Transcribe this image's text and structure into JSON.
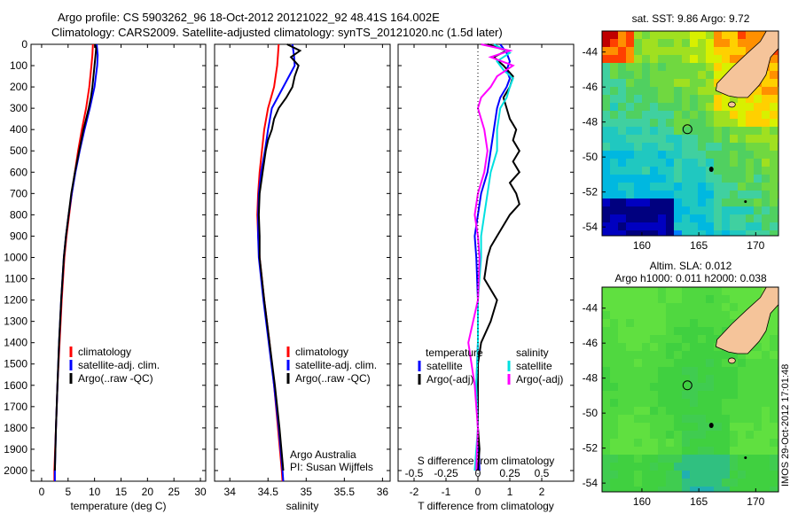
{
  "header": {
    "line1": "Argo profile: CS 5903262_96 18-Oct-2012 20121022_92 48.41S 164.002E",
    "line2": "Climatology: CARS2009. Satellite-adjusted climatology: synTS_20121020.nc (1.5d later)"
  },
  "side_label": "IMOS 29-Oct-2012 17:01:48",
  "colors": {
    "climatology": "#ff0000",
    "satellite": "#0000ff",
    "argo": "#000000",
    "satellite_salinity": "#00e0e0",
    "argo_salinity": "#ff00ff",
    "land": "#f5c49a"
  },
  "chart_data": [
    {
      "type": "line",
      "panel": "temperature",
      "xlabel": "temperature (deg C)",
      "ylabel": "",
      "xlim": [
        -2,
        31
      ],
      "ylim": [
        2050,
        0
      ],
      "x_ticks": [
        0,
        5,
        10,
        15,
        20,
        25,
        30
      ],
      "y_ticks": [
        0,
        100,
        200,
        300,
        400,
        500,
        600,
        700,
        800,
        900,
        1000,
        1100,
        1200,
        1300,
        1400,
        1500,
        1600,
        1700,
        1800,
        1900,
        2000
      ],
      "legend": [
        "climatology",
        "satellite-adj. clim.",
        "Argo(..raw -QC)"
      ],
      "series": [
        {
          "name": "climatology",
          "color": "#ff0000",
          "depth": [
            0,
            50,
            100,
            200,
            300,
            400,
            500,
            600,
            700,
            800,
            900,
            1000,
            1200,
            1400,
            1600,
            1800,
            2000,
            2050
          ],
          "values": [
            9.7,
            9.6,
            9.4,
            9.0,
            8.4,
            7.6,
            6.9,
            6.3,
            5.7,
            5.2,
            4.7,
            4.3,
            3.8,
            3.4,
            3.0,
            2.7,
            2.4,
            2.4
          ]
        },
        {
          "name": "satellite-adj. clim.",
          "color": "#0000ff",
          "depth": [
            0,
            50,
            100,
            200,
            300,
            400,
            500,
            600,
            700,
            800,
            900,
            1000,
            1200,
            1400,
            1600,
            1800,
            2000,
            2050
          ],
          "values": [
            10.4,
            10.6,
            10.5,
            10.0,
            9.1,
            8.1,
            7.2,
            6.4,
            5.7,
            5.1,
            4.6,
            4.2,
            3.7,
            3.3,
            3.0,
            2.7,
            2.5,
            2.5
          ]
        },
        {
          "name": "Argo(..raw -QC)",
          "color": "#000000",
          "depth": [
            0,
            20,
            50,
            100,
            150,
            200,
            250,
            300,
            350,
            400,
            500,
            600,
            700,
            800,
            900,
            1000,
            1200,
            1400,
            1600,
            1800,
            2000
          ],
          "values": [
            10.1,
            10.3,
            10.2,
            10.0,
            9.8,
            9.6,
            9.3,
            8.9,
            8.4,
            7.9,
            7.1,
            6.3,
            5.6,
            5.1,
            4.6,
            4.2,
            3.7,
            3.3,
            3.0,
            2.7,
            2.5
          ]
        }
      ]
    },
    {
      "type": "line",
      "panel": "salinity",
      "xlabel": "salinity",
      "ylabel": "",
      "xlim": [
        33.8,
        36.1
      ],
      "ylim": [
        2050,
        0
      ],
      "x_ticks": [
        34,
        34.5,
        35,
        35.5,
        36
      ],
      "x_tick_labels": [
        "34",
        "34.5",
        "35",
        "35.5",
        "36"
      ],
      "legend": [
        "climatology",
        "satellite-adj. clim.",
        "Argo(..raw -QC)"
      ],
      "annotation": [
        "Argo Australia",
        "PI: Susan Wijffels"
      ],
      "series": [
        {
          "name": "climatology",
          "color": "#ff0000",
          "depth": [
            0,
            50,
            100,
            200,
            300,
            400,
            500,
            600,
            700,
            800,
            900,
            1000,
            1200,
            1400,
            1600,
            1800,
            2000,
            2050
          ],
          "values": [
            34.64,
            34.63,
            34.62,
            34.58,
            34.5,
            34.45,
            34.42,
            34.39,
            34.37,
            34.36,
            34.37,
            34.39,
            34.45,
            34.52,
            34.58,
            34.63,
            34.68,
            34.69
          ]
        },
        {
          "name": "satellite-adj. clim.",
          "color": "#0000ff",
          "depth": [
            0,
            50,
            100,
            200,
            300,
            400,
            500,
            600,
            700,
            800,
            900,
            1000,
            1200,
            1400,
            1600,
            1800,
            2000,
            2050
          ],
          "values": [
            34.82,
            34.84,
            34.85,
            34.7,
            34.55,
            34.5,
            34.46,
            34.41,
            34.38,
            34.37,
            34.37,
            34.38,
            34.44,
            34.51,
            34.58,
            34.64,
            34.69,
            34.7
          ]
        },
        {
          "name": "Argo(..raw -QC)",
          "color": "#000000",
          "depth": [
            0,
            30,
            60,
            100,
            150,
            200,
            250,
            300,
            350,
            400,
            450,
            500,
            600,
            700,
            800,
            900,
            1000,
            1200,
            1400,
            1600,
            1800,
            2000
          ],
          "values": [
            34.75,
            34.92,
            34.8,
            34.9,
            34.85,
            34.82,
            34.74,
            34.64,
            34.58,
            34.55,
            34.5,
            34.47,
            34.43,
            34.39,
            34.38,
            34.39,
            34.39,
            34.45,
            34.52,
            34.59,
            34.65,
            34.7
          ]
        }
      ]
    },
    {
      "type": "line",
      "panel": "difference",
      "xlabel": "T difference from climatology",
      "top_axis_label": "S difference from climatology",
      "xlim": [
        -2.5,
        3
      ],
      "ylim": [
        2050,
        0
      ],
      "x_ticks": [
        -2,
        -1,
        0,
        1,
        2
      ],
      "top_ticks": [
        "-0.5",
        "-0.25",
        "0",
        "0.25",
        "0.5"
      ],
      "legend_temperature": [
        "temperature",
        "satellite",
        "Argo(-adj)"
      ],
      "legend_salinity": [
        "salinity",
        "satellite",
        "Argo(-adj)"
      ],
      "series": [
        {
          "name": "satellite",
          "color": "#0000ff",
          "variable": "temperature",
          "depth": [
            0,
            40,
            80,
            120,
            160,
            200,
            250,
            300,
            400,
            500,
            600,
            700,
            800,
            900,
            1000,
            1200,
            1400,
            1600,
            1800,
            2000
          ],
          "values": [
            0.7,
            0.9,
            1.0,
            0.9,
            1.0,
            0.9,
            0.7,
            0.6,
            0.5,
            0.4,
            0.3,
            0.1,
            0.0,
            -0.1,
            -0.05,
            0.0,
            0.0,
            -0.05,
            0.0,
            0.05
          ]
        },
        {
          "name": "Argo(-adj)",
          "color": "#000000",
          "variable": "temperature",
          "depth": [
            0,
            30,
            60,
            100,
            150,
            200,
            250,
            300,
            350,
            400,
            450,
            500,
            550,
            600,
            650,
            700,
            750,
            800,
            850,
            900,
            950,
            1000,
            1100,
            1200,
            1300,
            1400,
            1500,
            1600,
            1700,
            1800,
            1900,
            2000
          ],
          "values": [
            0.3,
            0.9,
            0.5,
            0.8,
            1.1,
            1.0,
            0.8,
            0.9,
            1.0,
            1.2,
            1.1,
            1.3,
            1.1,
            1.3,
            1.0,
            1.2,
            1.3,
            1.0,
            0.8,
            0.6,
            0.4,
            0.3,
            0.2,
            0.6,
            0.4,
            0.1,
            0.0,
            0.0,
            0.0,
            0.0,
            0.05,
            0.0
          ]
        },
        {
          "name": "satellite",
          "color": "#00e0e0",
          "variable": "salinity",
          "depth": [
            0,
            40,
            80,
            120,
            160,
            200,
            250,
            300,
            400,
            500,
            600,
            700,
            800,
            900,
            1000,
            1200,
            1400,
            1600,
            1800,
            2000
          ],
          "values": [
            0.5,
            1.0,
            0.6,
            0.8,
            1.1,
            1.0,
            0.9,
            0.7,
            0.6,
            0.6,
            0.4,
            0.3,
            0.2,
            0.1,
            0.1,
            0.0,
            0.0,
            -0.05,
            0.0,
            -0.1
          ]
        },
        {
          "name": "Argo(-adj)",
          "color": "#ff00ff",
          "variable": "salinity",
          "depth": [
            0,
            30,
            60,
            100,
            150,
            200,
            250,
            300,
            400,
            500,
            600,
            700,
            800,
            900,
            1000,
            1200,
            1400,
            1600,
            1800,
            2000
          ],
          "values": [
            0.1,
            1.0,
            0.4,
            1.1,
            0.6,
            0.4,
            0.1,
            0.0,
            0.2,
            0.3,
            0.2,
            0.0,
            -0.1,
            0.0,
            0.05,
            0.0,
            -0.3,
            -0.1,
            0.0,
            -0.05
          ]
        }
      ]
    },
    {
      "type": "heatmap",
      "panel": "sst_map",
      "title": "sat. SST: 9.86 Argo: 9.72",
      "xlim": [
        156.5,
        172
      ],
      "ylim": [
        -54.5,
        -42.8
      ],
      "x_ticks": [
        160,
        165,
        170
      ],
      "y_ticks": [
        -44,
        -46,
        -48,
        -50,
        -52,
        -54
      ],
      "argo_position": {
        "lon": 164.002,
        "lat": -48.41
      }
    },
    {
      "type": "heatmap",
      "panel": "sla_map",
      "title": "Altim. SLA: 0.012",
      "subtitle": "Argo h1000: 0.011 h2000: 0.038",
      "xlim": [
        156.5,
        172
      ],
      "ylim": [
        -54.5,
        -42.8
      ],
      "x_ticks": [
        160,
        165,
        170
      ],
      "y_ticks": [
        -44,
        -46,
        -48,
        -50,
        -52,
        -54
      ],
      "argo_position": {
        "lon": 164.002,
        "lat": -48.41
      }
    }
  ]
}
